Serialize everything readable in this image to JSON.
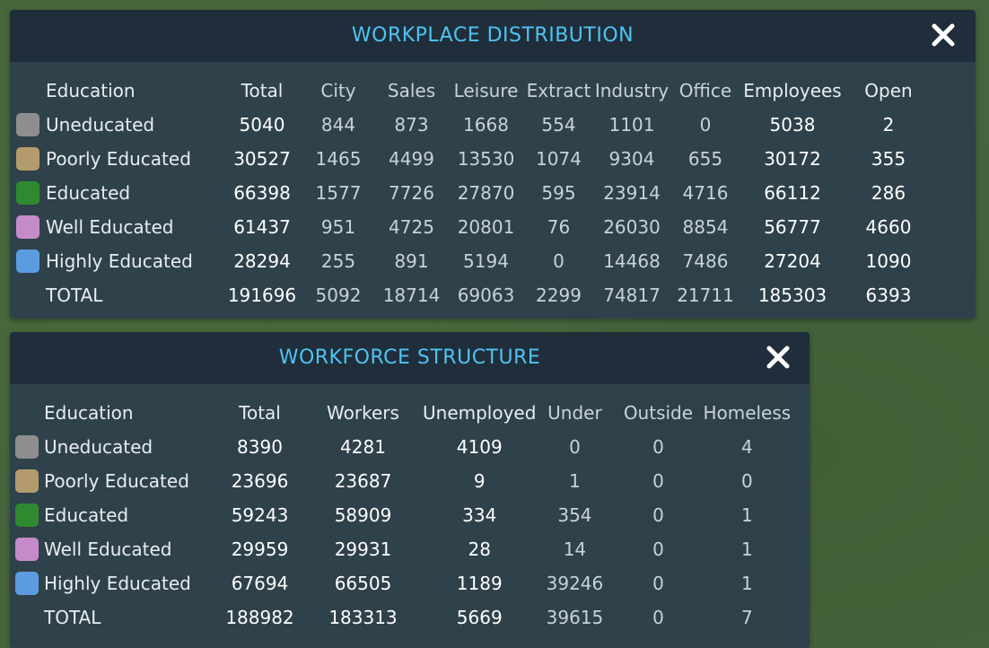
{
  "workplace": {
    "title": "WORKPLACE DISTRIBUTION",
    "columns": [
      "Education",
      "Total",
      "City",
      "Sales",
      "Leisure",
      "Extract",
      "Industry",
      "Office",
      "Employees",
      "Open"
    ],
    "rows": [
      {
        "color": "#8e8e8e",
        "label": "Uneducated",
        "values": [
          "5040",
          "844",
          "873",
          "1668",
          "554",
          "1101",
          "0",
          "5038",
          "2"
        ]
      },
      {
        "color": "#b39b6e",
        "label": "Poorly Educated",
        "values": [
          "30527",
          "1465",
          "4499",
          "13530",
          "1074",
          "9304",
          "655",
          "30172",
          "355"
        ]
      },
      {
        "color": "#2f8a2f",
        "label": "Educated",
        "values": [
          "66398",
          "1577",
          "7726",
          "27870",
          "595",
          "23914",
          "4716",
          "66112",
          "286"
        ]
      },
      {
        "color": "#c58bc9",
        "label": "Well Educated",
        "values": [
          "61437",
          "951",
          "4725",
          "20801",
          "76",
          "26030",
          "8854",
          "56777",
          "4660"
        ]
      },
      {
        "color": "#5b9ce0",
        "label": "Highly Educated",
        "values": [
          "28294",
          "255",
          "891",
          "5194",
          "0",
          "14468",
          "7486",
          "27204",
          "1090"
        ]
      }
    ],
    "total": {
      "label": "TOTAL",
      "values": [
        "191696",
        "5092",
        "18714",
        "69063",
        "2299",
        "74817",
        "21711",
        "185303",
        "6393"
      ]
    }
  },
  "workforce": {
    "title": "WORKFORCE STRUCTURE",
    "columns": [
      "Education",
      "Total",
      "Workers",
      "Unemployed",
      "Under",
      "Outside",
      "Homeless"
    ],
    "rows": [
      {
        "color": "#8e8e8e",
        "label": "Uneducated",
        "values": [
          "8390",
          "4281",
          "4109",
          "0",
          "0",
          "4"
        ]
      },
      {
        "color": "#b39b6e",
        "label": "Poorly Educated",
        "values": [
          "23696",
          "23687",
          "9",
          "1",
          "0",
          "0"
        ]
      },
      {
        "color": "#2f8a2f",
        "label": "Educated",
        "values": [
          "59243",
          "58909",
          "334",
          "354",
          "0",
          "1"
        ]
      },
      {
        "color": "#c58bc9",
        "label": "Well Educated",
        "values": [
          "29959",
          "29931",
          "28",
          "14",
          "0",
          "1"
        ]
      },
      {
        "color": "#5b9ce0",
        "label": "Highly Educated",
        "values": [
          "67694",
          "66505",
          "1189",
          "39246",
          "0",
          "1"
        ]
      }
    ],
    "total": {
      "label": "TOTAL",
      "values": [
        "188982",
        "183313",
        "5669",
        "39615",
        "0",
        "7"
      ]
    }
  },
  "icons": {
    "close": "close-icon"
  }
}
